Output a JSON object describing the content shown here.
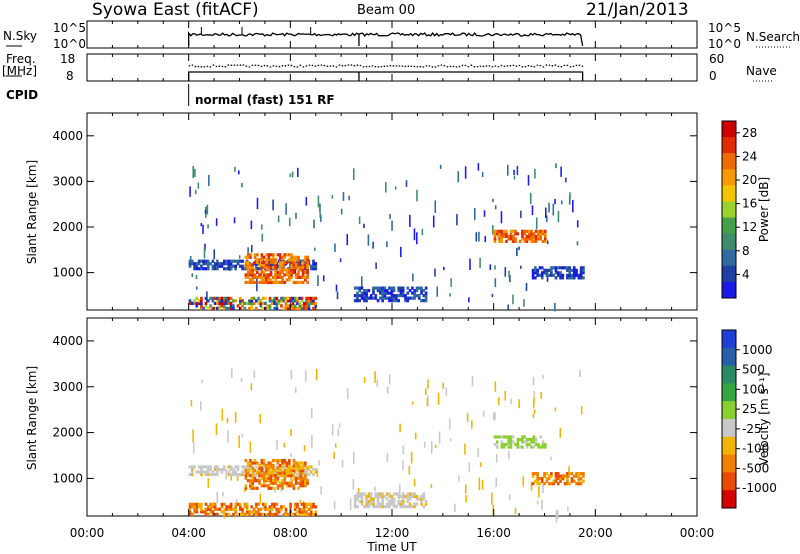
{
  "header": {
    "title": "Syowa East (fitACF)",
    "beam": "Beam 00",
    "date": "21/Jan/2013"
  },
  "strips": {
    "nsky_label": "N.Sky",
    "nsearch_label": "N.Search",
    "nsky_ticks": [
      "10^5",
      "10^0"
    ],
    "nsky_right_ticks": [
      "10^5",
      "10^0"
    ],
    "freq_label_1": "Freq.",
    "freq_label_2": "[MHz]",
    "freq_ticks": [
      "18",
      "8"
    ],
    "nave_label": "Nave",
    "nave_ticks": [
      "60",
      "0"
    ],
    "cpid_label": "CPID",
    "cpid_text": "normal (fast) 151 RF"
  },
  "colors": {
    "power": [
      "#1a1ae6",
      "#1e3fa6",
      "#2f6b9e",
      "#3d8c6e",
      "#43a04a",
      "#9ad12f",
      "#f5c400",
      "#f59a00",
      "#ef6a00",
      "#e02a00",
      "#cc0000"
    ],
    "velocity": [
      "#1f3fd6",
      "#255fa8",
      "#2e8a66",
      "#35a63f",
      "#8ad030",
      "#c8c8c8",
      "#f2b400",
      "#f07f00",
      "#e84a00",
      "#d60000"
    ]
  },
  "chart_data": [
    {
      "type": "heatmap",
      "name": "power",
      "xlabel": "",
      "ylabel": "Slant Range [km]",
      "yticks": [
        "1000",
        "2000",
        "3000",
        "4000"
      ],
      "xticks": [],
      "ylim": [
        180,
        4500
      ],
      "xlim": [
        0,
        24
      ],
      "colorbar": {
        "label": "Power [dB]",
        "ticks": [
          "4",
          "8",
          "12",
          "16",
          "20",
          "24",
          "28"
        ],
        "range": [
          0,
          30
        ]
      },
      "regions": [
        {
          "t": [
            4.0,
            9.0
          ],
          "r": [
            1050,
            1250
          ],
          "level": "low"
        },
        {
          "t": [
            4.0,
            9.0
          ],
          "r": [
            180,
            450
          ],
          "level": "mixed"
        },
        {
          "t": [
            6.2,
            8.7
          ],
          "r": [
            750,
            1400
          ],
          "level": "high"
        },
        {
          "t": [
            10.5,
            13.3
          ],
          "r": [
            350,
            650
          ],
          "level": "low"
        },
        {
          "t": [
            16.0,
            18.0
          ],
          "r": [
            1650,
            1900
          ],
          "level": "high"
        },
        {
          "t": [
            17.5,
            19.5
          ],
          "r": [
            850,
            1100
          ],
          "level": "low"
        }
      ]
    },
    {
      "type": "heatmap",
      "name": "velocity",
      "xlabel": "Time UT",
      "ylabel": "Slant Range [km]",
      "yticks": [
        "1000",
        "2000",
        "3000",
        "4000"
      ],
      "xticks": [
        "00:00",
        "04:00",
        "08:00",
        "12:00",
        "16:00",
        "20:00",
        "00:00"
      ],
      "ylim": [
        180,
        4500
      ],
      "xlim": [
        0,
        24
      ],
      "colorbar": {
        "label": "Velocity [m s⁻¹]",
        "ticks": [
          "1000",
          "500",
          "100",
          "25",
          "-25",
          "-100",
          "-500",
          "-1000"
        ],
        "range": [
          -1000,
          1000
        ]
      },
      "regions": [
        {
          "t": [
            4.0,
            9.0
          ],
          "r": [
            1050,
            1250
          ],
          "level": "grey"
        },
        {
          "t": [
            4.0,
            9.0
          ],
          "r": [
            180,
            450
          ],
          "level": "orange"
        },
        {
          "t": [
            6.2,
            8.7
          ],
          "r": [
            750,
            1400
          ],
          "level": "orange"
        },
        {
          "t": [
            10.5,
            13.3
          ],
          "r": [
            350,
            650
          ],
          "level": "grey"
        },
        {
          "t": [
            16.0,
            18.0
          ],
          "r": [
            1650,
            1900
          ],
          "level": "green"
        },
        {
          "t": [
            17.5,
            19.5
          ],
          "r": [
            850,
            1100
          ],
          "level": "orange"
        }
      ]
    }
  ]
}
